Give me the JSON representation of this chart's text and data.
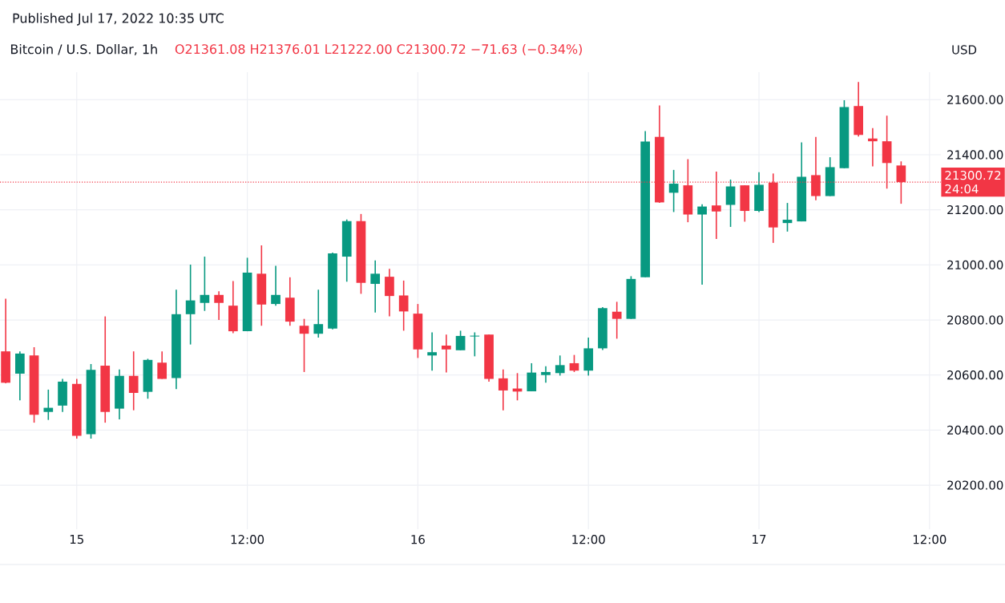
{
  "chart_data": {
    "type": "candlestick",
    "title": "Bitcoin / U.S. Dollar, 1h",
    "subtitle": "Published Jul 17, 2022 10:35 UTC",
    "ylabel": "USD",
    "annotations": [
      "O21361.08 H21376.01 L21222.00 C21300.72 −71.63 (−0.34%)",
      "24:04"
    ],
    "x": [
      "2022-07-14T19:00",
      "2022-07-14T20:00",
      "2022-07-14T21:00",
      "2022-07-14T22:00",
      "2022-07-14T23:00",
      "2022-07-15T00:00",
      "2022-07-15T01:00",
      "2022-07-15T02:00",
      "2022-07-15T03:00",
      "2022-07-15T04:00",
      "2022-07-15T05:00",
      "2022-07-15T06:00",
      "2022-07-15T07:00",
      "2022-07-15T08:00",
      "2022-07-15T09:00",
      "2022-07-15T10:00",
      "2022-07-15T11:00",
      "2022-07-15T12:00",
      "2022-07-15T13:00",
      "2022-07-15T14:00",
      "2022-07-15T15:00",
      "2022-07-15T16:00",
      "2022-07-15T17:00",
      "2022-07-15T18:00",
      "2022-07-15T19:00",
      "2022-07-15T20:00",
      "2022-07-15T21:00",
      "2022-07-15T22:00",
      "2022-07-15T23:00",
      "2022-07-16T00:00",
      "2022-07-16T01:00",
      "2022-07-16T02:00",
      "2022-07-16T03:00",
      "2022-07-16T04:00",
      "2022-07-16T05:00",
      "2022-07-16T06:00",
      "2022-07-16T07:00",
      "2022-07-16T08:00",
      "2022-07-16T09:00",
      "2022-07-16T10:00",
      "2022-07-16T11:00",
      "2022-07-16T12:00",
      "2022-07-16T13:00",
      "2022-07-16T14:00",
      "2022-07-16T15:00",
      "2022-07-16T16:00",
      "2022-07-16T17:00",
      "2022-07-16T18:00",
      "2022-07-16T19:00",
      "2022-07-16T20:00",
      "2022-07-16T21:00",
      "2022-07-16T22:00",
      "2022-07-16T23:00",
      "2022-07-17T00:00",
      "2022-07-17T01:00",
      "2022-07-17T02:00",
      "2022-07-17T03:00",
      "2022-07-17T04:00",
      "2022-07-17T05:00",
      "2022-07-17T06:00",
      "2022-07-17T07:00",
      "2022-07-17T08:00",
      "2022-07-17T09:00",
      "2022-07-17T10:00"
    ],
    "ohlc": [
      [
        20686,
        20877,
        20570,
        20572
      ],
      [
        20605,
        20686,
        20508,
        20678
      ],
      [
        20671,
        20701,
        20427,
        20456
      ],
      [
        20466,
        20547,
        20437,
        20481
      ],
      [
        20489,
        20586,
        20466,
        20576
      ],
      [
        20568,
        20586,
        20369,
        20379
      ],
      [
        20385,
        20640,
        20369,
        20619
      ],
      [
        20634,
        20813,
        20427,
        20466
      ],
      [
        20478,
        20620,
        20439,
        20597
      ],
      [
        20597,
        20686,
        20472,
        20535
      ],
      [
        20539,
        20659,
        20514,
        20655
      ],
      [
        20645,
        20686,
        20586,
        20586
      ],
      [
        20589,
        20910,
        20549,
        20821
      ],
      [
        20821,
        21001,
        20711,
        20871
      ],
      [
        20862,
        21030,
        20833,
        20891
      ],
      [
        20891,
        20904,
        20800,
        20862
      ],
      [
        20852,
        20941,
        20752,
        20759
      ],
      [
        20759,
        21026,
        20759,
        20972
      ],
      [
        20968,
        21071,
        20779,
        20856
      ],
      [
        20858,
        20997,
        20852,
        20891
      ],
      [
        20881,
        20955,
        20779,
        20794
      ],
      [
        20779,
        20804,
        20611,
        20750
      ],
      [
        20750,
        20910,
        20736,
        20785
      ],
      [
        20769,
        21045,
        20766,
        21042
      ],
      [
        21030,
        21165,
        20939,
        21159
      ],
      [
        21159,
        21185,
        20895,
        20935
      ],
      [
        20931,
        21016,
        20827,
        20968
      ],
      [
        20957,
        20986,
        20813,
        20887
      ],
      [
        20889,
        20943,
        20761,
        20831
      ],
      [
        20823,
        20858,
        20662,
        20693
      ],
      [
        20671,
        20755,
        20616,
        20683
      ],
      [
        20707,
        20747,
        20609,
        20693
      ],
      [
        20690,
        20761,
        20690,
        20742
      ],
      [
        20740,
        20755,
        20668,
        20743
      ],
      [
        20747,
        20747,
        20576,
        20586
      ],
      [
        20588,
        20620,
        20472,
        20544
      ],
      [
        20551,
        20607,
        20508,
        20540
      ],
      [
        20541,
        20643,
        20541,
        20609
      ],
      [
        20600,
        20632,
        20572,
        20611
      ],
      [
        20607,
        20671,
        20598,
        20636
      ],
      [
        20643,
        20673,
        20611,
        20616
      ],
      [
        20616,
        20736,
        20598,
        20697
      ],
      [
        20697,
        20847,
        20691,
        20843
      ],
      [
        20830,
        20866,
        20732,
        20804
      ],
      [
        20804,
        20959,
        20804,
        20949
      ],
      [
        20955,
        21486,
        20955,
        21448
      ],
      [
        21465,
        21579,
        21225,
        21227
      ],
      [
        21262,
        21345,
        21192,
        21295
      ],
      [
        21289,
        21384,
        21155,
        21183
      ],
      [
        21183,
        21220,
        20928,
        21212
      ],
      [
        21216,
        21339,
        21094,
        21194
      ],
      [
        21218,
        21310,
        21138,
        21285
      ],
      [
        21289,
        21289,
        21157,
        21196
      ],
      [
        21196,
        21337,
        21192,
        21291
      ],
      [
        21299,
        21332,
        21080,
        21136
      ],
      [
        21152,
        21225,
        21121,
        21164
      ],
      [
        21158,
        21445,
        21158,
        21320
      ],
      [
        21326,
        21465,
        21235,
        21250
      ],
      [
        21250,
        21391,
        21250,
        21355
      ],
      [
        21351,
        21598,
        21351,
        21573
      ],
      [
        21577,
        21664,
        21466,
        21472
      ],
      [
        21459,
        21497,
        21358,
        21449
      ],
      [
        21449,
        21542,
        21277,
        21370
      ],
      [
        21361.08,
        21376.01,
        21222,
        21300.72
      ]
    ],
    "colors": [
      "#f23645",
      "#089981",
      "#f23645",
      "#089981",
      "#089981",
      "#f23645",
      "#089981",
      "#f23645",
      "#089981",
      "#f23645",
      "#089981",
      "#f23645",
      "#089981",
      "#089981",
      "#089981",
      "#f23645",
      "#f23645",
      "#089981",
      "#f23645",
      "#089981",
      "#f23645",
      "#f23645",
      "#089981",
      "#089981",
      "#089981",
      "#f23645",
      "#089981",
      "#f23645",
      "#f23645",
      "#f23645",
      "#089981",
      "#f23645",
      "#089981",
      "#089981",
      "#f23645",
      "#f23645",
      "#f23645",
      "#089981",
      "#089981",
      "#089981",
      "#f23645",
      "#089981",
      "#089981",
      "#f23645",
      "#089981",
      "#089981",
      "#f23645",
      "#089981",
      "#f23645",
      "#089981",
      "#f23645",
      "#089981",
      "#f23645",
      "#089981",
      "#f23645",
      "#089981",
      "#089981",
      "#f23645",
      "#089981",
      "#089981",
      "#f23645",
      "#f23645",
      "#f23645",
      "#f23645"
    ],
    "xlim": [
      "2022-07-14T18:36",
      "2022-07-17T12:48"
    ],
    "xticks": [
      {
        "value": "2022-07-15T00:00",
        "label": "15"
      },
      {
        "value": "2022-07-15T12:00",
        "label": "12:00"
      },
      {
        "value": "2022-07-16T00:00",
        "label": "16"
      },
      {
        "value": "2022-07-16T12:00",
        "label": "12:00"
      },
      {
        "value": "2022-07-17T00:00",
        "label": "17"
      },
      {
        "value": "2022-07-17T12:00",
        "label": "12:00"
      }
    ],
    "ylim": [
      20040,
      21700
    ],
    "yticks": [
      {
        "value": 20200,
        "label": "20200.00"
      },
      {
        "value": 20400,
        "label": "20400.00"
      },
      {
        "value": 20600,
        "label": "20600.00"
      },
      {
        "value": 20800,
        "label": "20800.00"
      },
      {
        "value": 21000,
        "label": "21000.00"
      },
      {
        "value": 21200,
        "label": "21200.00"
      },
      {
        "value": 21400,
        "label": "21400.00"
      },
      {
        "value": 21600,
        "label": "21600.00"
      }
    ],
    "ref_lines": [
      {
        "axis": "y",
        "value": 21300.72,
        "label": "21300.72",
        "color": "#f23645",
        "line_style": "dotted"
      }
    ],
    "grid": true
  }
}
